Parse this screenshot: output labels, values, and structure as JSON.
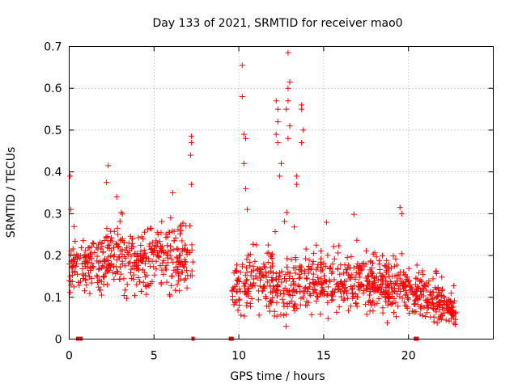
{
  "chart_data": {
    "type": "scatter",
    "title": "Day 133 of 2021, SRMTID for receiver mao0",
    "xlabel": "GPS time / hours",
    "ylabel": "SRMTID / TECUs",
    "xlim": [
      0,
      25
    ],
    "ylim": [
      0,
      0.7
    ],
    "x_ticks": [
      0,
      5,
      10,
      15,
      20
    ],
    "x_tick_labels": [
      "0",
      "5",
      "10",
      "15",
      "20"
    ],
    "y_ticks": [
      0,
      0.1,
      0.2,
      0.3,
      0.4,
      0.5,
      0.6,
      0.7
    ],
    "y_tick_labels": [
      "0",
      "0.1",
      "0.2",
      "0.3",
      "0.4",
      "0.5",
      "0.6",
      "0.7"
    ],
    "grid": true,
    "marker": "+",
    "color": "#ff0000",
    "envelope": [
      {
        "x": 0.0,
        "mean": 0.17,
        "spread": 0.07
      },
      {
        "x": 1.0,
        "mean": 0.17,
        "spread": 0.06
      },
      {
        "x": 2.0,
        "mean": 0.19,
        "spread": 0.07
      },
      {
        "x": 3.0,
        "mean": 0.2,
        "spread": 0.07
      },
      {
        "x": 4.0,
        "mean": 0.19,
        "spread": 0.07
      },
      {
        "x": 5.0,
        "mean": 0.18,
        "spread": 0.07
      },
      {
        "x": 6.0,
        "mean": 0.2,
        "spread": 0.08
      },
      {
        "x": 7.3,
        "mean": 0.18,
        "spread": 0.07
      },
      {
        "x": 9.6,
        "mean": 0.12,
        "spread": 0.05
      },
      {
        "x": 11.0,
        "mean": 0.14,
        "spread": 0.07
      },
      {
        "x": 12.5,
        "mean": 0.14,
        "spread": 0.08
      },
      {
        "x": 14.0,
        "mean": 0.14,
        "spread": 0.07
      },
      {
        "x": 16.0,
        "mean": 0.13,
        "spread": 0.06
      },
      {
        "x": 18.0,
        "mean": 0.13,
        "spread": 0.06
      },
      {
        "x": 20.0,
        "mean": 0.12,
        "spread": 0.06
      },
      {
        "x": 21.5,
        "mean": 0.09,
        "spread": 0.04
      },
      {
        "x": 22.8,
        "mean": 0.07,
        "spread": 0.03
      }
    ],
    "gaps": [
      [
        7.3,
        9.6
      ]
    ],
    "point_count": 1400,
    "spikes": [
      {
        "x": 0.05,
        "y": 0.39
      },
      {
        "x": 0.1,
        "y": 0.31
      },
      {
        "x": 2.3,
        "y": 0.415
      },
      {
        "x": 2.2,
        "y": 0.375
      },
      {
        "x": 2.8,
        "y": 0.34
      },
      {
        "x": 6.1,
        "y": 0.35
      },
      {
        "x": 7.2,
        "y": 0.485
      },
      {
        "x": 7.2,
        "y": 0.47
      },
      {
        "x": 7.15,
        "y": 0.44
      },
      {
        "x": 7.2,
        "y": 0.37
      },
      {
        "x": 10.2,
        "y": 0.655
      },
      {
        "x": 10.2,
        "y": 0.58
      },
      {
        "x": 10.3,
        "y": 0.49
      },
      {
        "x": 10.4,
        "y": 0.48
      },
      {
        "x": 10.3,
        "y": 0.42
      },
      {
        "x": 10.4,
        "y": 0.36
      },
      {
        "x": 10.5,
        "y": 0.31
      },
      {
        "x": 12.2,
        "y": 0.57
      },
      {
        "x": 12.3,
        "y": 0.55
      },
      {
        "x": 12.3,
        "y": 0.52
      },
      {
        "x": 12.2,
        "y": 0.49
      },
      {
        "x": 12.3,
        "y": 0.47
      },
      {
        "x": 12.5,
        "y": 0.42
      },
      {
        "x": 12.4,
        "y": 0.39
      },
      {
        "x": 12.9,
        "y": 0.685
      },
      {
        "x": 13.0,
        "y": 0.615
      },
      {
        "x": 12.9,
        "y": 0.6
      },
      {
        "x": 12.9,
        "y": 0.57
      },
      {
        "x": 12.8,
        "y": 0.55
      },
      {
        "x": 13.0,
        "y": 0.51
      },
      {
        "x": 12.9,
        "y": 0.48
      },
      {
        "x": 13.7,
        "y": 0.56
      },
      {
        "x": 13.7,
        "y": 0.55
      },
      {
        "x": 13.8,
        "y": 0.5
      },
      {
        "x": 13.7,
        "y": 0.47
      },
      {
        "x": 13.4,
        "y": 0.39
      },
      {
        "x": 13.4,
        "y": 0.37
      },
      {
        "x": 19.5,
        "y": 0.315
      },
      {
        "x": 19.6,
        "y": 0.3
      }
    ],
    "baseline_markers": [
      0.5,
      0.7,
      7.3,
      9.5,
      9.6,
      20.4,
      20.5
    ]
  }
}
